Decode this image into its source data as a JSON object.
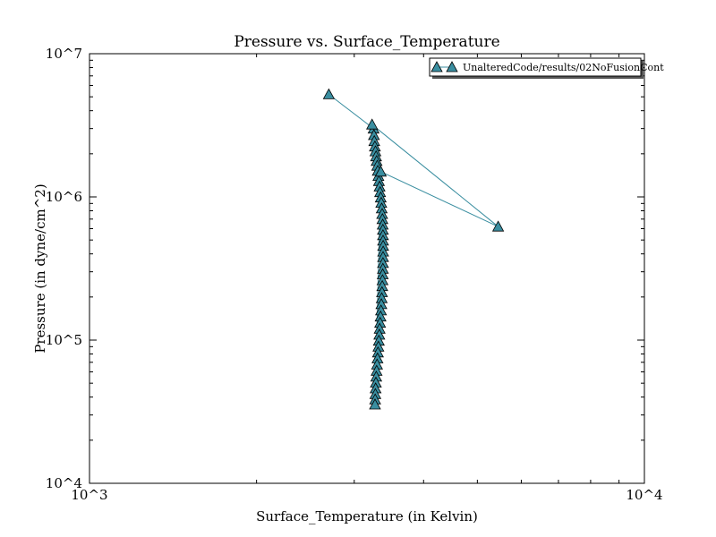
{
  "chart_data": {
    "type": "scatter",
    "title": "Pressure vs. Surface_Temperature",
    "xlabel": "Surface_Temperature (in Kelvin)",
    "ylabel": "Pressure (in dyne/cm^2)",
    "x_scale": "log",
    "y_scale": "log",
    "xlim": [
      1000,
      10000
    ],
    "ylim": [
      10000,
      10000000
    ],
    "x_tick_labels": [
      "10^3",
      "10^4"
    ],
    "y_tick_labels": [
      "10^4",
      "10^5",
      "10^6",
      "10^7"
    ],
    "grid": false,
    "legend_position": "top-right",
    "series": [
      {
        "name": "UnalteredCode/results/02NoFusionCont",
        "color": "#3a8ea0",
        "marker": "triangle",
        "line": true,
        "x": [
          2700,
          3250,
          3255,
          3260,
          3268,
          3276,
          3284,
          3292,
          3300,
          3308,
          3316,
          3324,
          3332,
          3340,
          3348,
          3356,
          3362,
          3368,
          3372,
          3376,
          3378,
          3380,
          3381,
          3382,
          3382,
          3381,
          3380,
          3378,
          3376,
          3373,
          3370,
          3366,
          3362,
          3357,
          3352,
          3346,
          3340,
          3334,
          3328,
          3322,
          3316,
          3310,
          3304,
          3298,
          3292,
          3287,
          3282,
          3278,
          3275,
          3272,
          3270,
          3350,
          5450,
          3230
        ],
        "y": [
          5200000,
          3000000,
          2700000,
          2450000,
          2250000,
          2080000,
          1920000,
          1780000,
          1650000,
          1520000,
          1400000,
          1290000,
          1180000,
          1080000,
          990000,
          910000,
          830000,
          760000,
          700000,
          640000,
          590000,
          540000,
          495000,
          455000,
          415000,
          380000,
          345000,
          315000,
          288000,
          262000,
          238000,
          216000,
          196000,
          178000,
          161000,
          146000,
          132000,
          120000,
          109000,
          99000,
          90000,
          82000,
          74500,
          67500,
          61000,
          55500,
          50500,
          46000,
          42000,
          38500,
          35500,
          1500000,
          620000,
          3200000
        ]
      }
    ]
  }
}
